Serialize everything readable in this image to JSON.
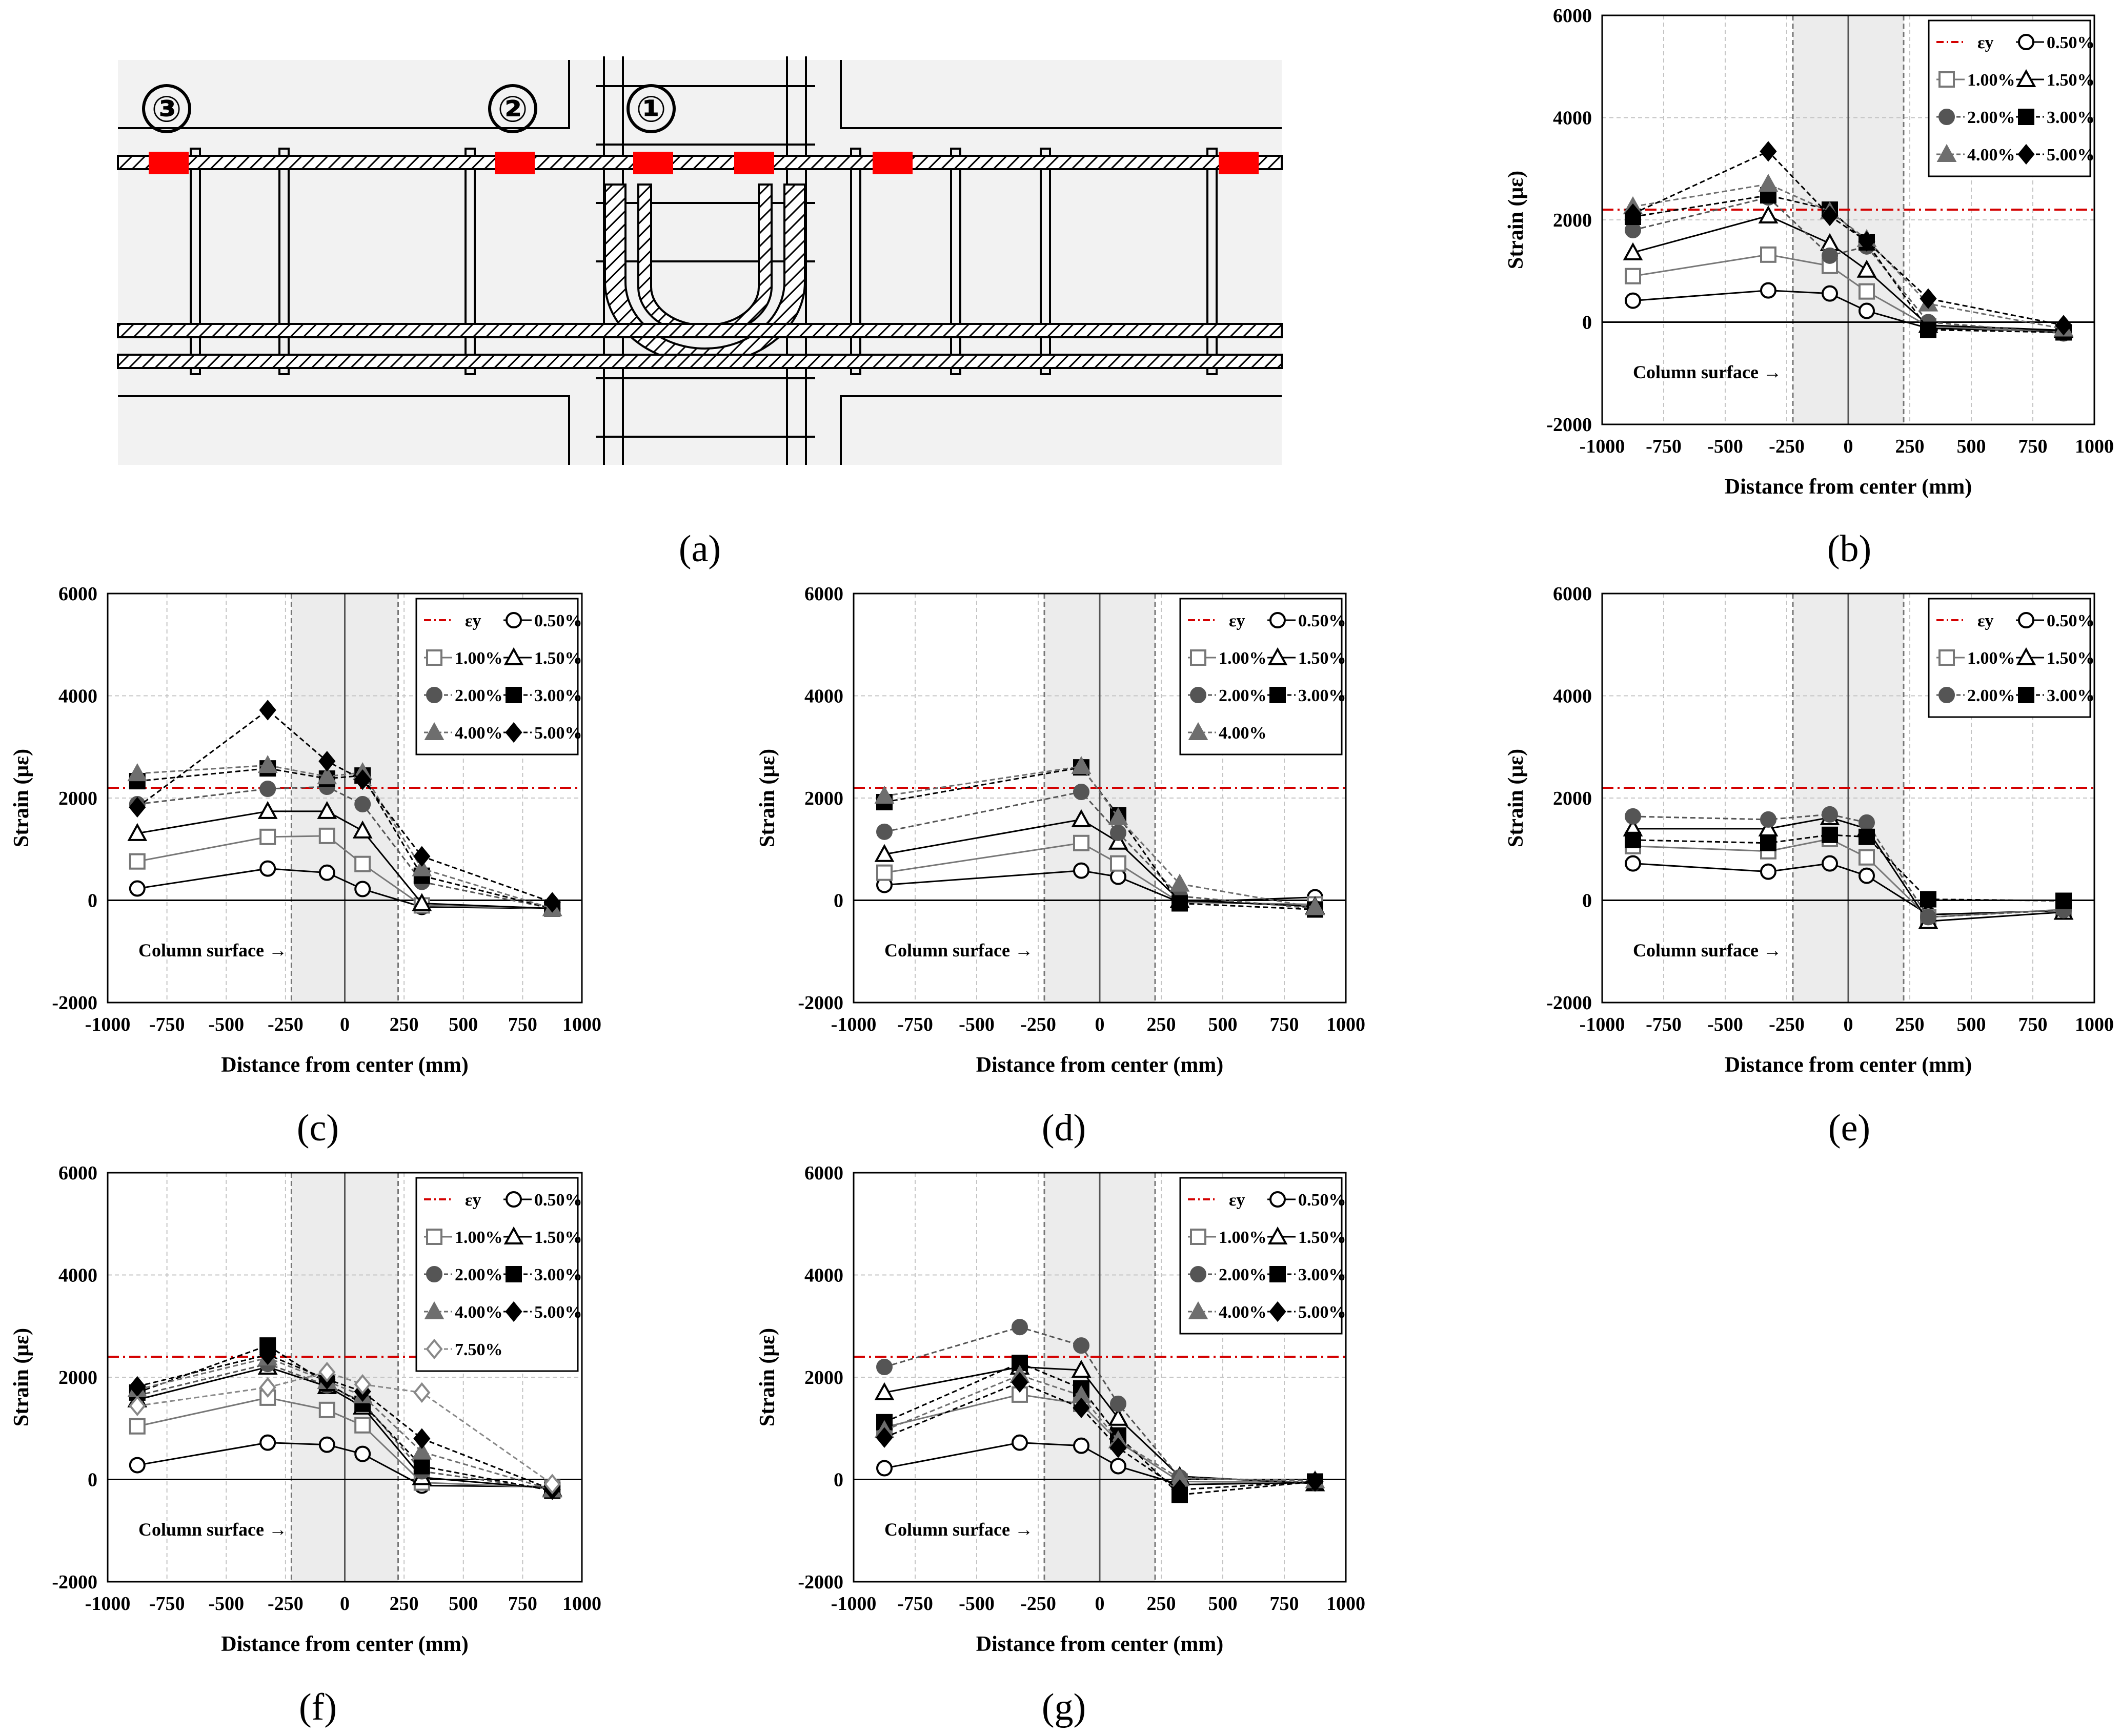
{
  "panel_letters": [
    "(a)",
    "(b)",
    "(c)",
    "(d)",
    "(e)",
    "(f)",
    "(g)"
  ],
  "schematic": {
    "markers": [
      "③",
      "②",
      "①"
    ],
    "colors": {
      "gauge": "#ff0000",
      "background": "#f2f2f2",
      "line": "#000000"
    }
  },
  "colors": {
    "ey_line": "#d40000",
    "band": "#ececec",
    "grid": "#c4c4c4",
    "s050": "#000000",
    "s100": "#777777",
    "s150": "#000000",
    "s200": "#555555",
    "s300": "#000000",
    "s400": "#6e6e6e",
    "s500": "#000000",
    "s750": "#888888"
  },
  "chart_data": [
    {
      "id": "b",
      "type": "line",
      "panel": "(b)",
      "xlabel": "Distance from center (mm)",
      "ylabel": "Strain (με)",
      "xlim": [
        -1000,
        1000
      ],
      "ylim": [
        -2000,
        6000
      ],
      "xticks": [
        -1000,
        -750,
        -500,
        -250,
        0,
        250,
        500,
        750,
        1000
      ],
      "yticks": [
        -2000,
        0,
        2000,
        4000,
        6000
      ],
      "column_band": [
        -225,
        225
      ],
      "annotation": "Column surface",
      "ey": 2200,
      "ey_label": "εy",
      "x": [
        -875,
        -325,
        -75,
        75,
        325,
        875
      ],
      "series": [
        {
          "name": "0.50%",
          "values": [
            420,
            620,
            560,
            220,
            -120,
            -180
          ]
        },
        {
          "name": "1.00%",
          "values": [
            900,
            1320,
            1100,
            600,
            -80,
            -200
          ]
        },
        {
          "name": "1.50%",
          "values": [
            1360,
            2080,
            1540,
            1020,
            -60,
            -160
          ]
        },
        {
          "name": "2.00%",
          "values": [
            1800,
            2440,
            1300,
            1480,
            0,
            -220
          ]
        },
        {
          "name": "3.00%",
          "values": [
            2060,
            2480,
            2200,
            1560,
            -150,
            -200
          ]
        },
        {
          "name": "4.00%",
          "values": [
            2260,
            2700,
            2160,
            1620,
            360,
            -130
          ]
        },
        {
          "name": "5.00%",
          "values": [
            2120,
            3340,
            2080,
            1580,
            460,
            -60
          ]
        }
      ]
    },
    {
      "id": "c",
      "type": "line",
      "panel": "(c)",
      "xlabel": "Distance from center (mm)",
      "ylabel": "Strain (με)",
      "xlim": [
        -1000,
        1000
      ],
      "ylim": [
        -2000,
        6000
      ],
      "xticks": [
        -1000,
        -750,
        -500,
        -250,
        0,
        250,
        500,
        750,
        1000
      ],
      "yticks": [
        -2000,
        0,
        2000,
        4000,
        6000
      ],
      "column_band": [
        -225,
        225
      ],
      "annotation": "Column surface",
      "ey": 2200,
      "ey_label": "εy",
      "x": [
        -875,
        -325,
        -75,
        75,
        325,
        875
      ],
      "series": [
        {
          "name": "0.50%",
          "values": [
            230,
            620,
            540,
            220,
            -130,
            -160
          ]
        },
        {
          "name": "1.00%",
          "values": [
            760,
            1240,
            1260,
            710,
            -100,
            -160
          ]
        },
        {
          "name": "1.50%",
          "values": [
            1310,
            1740,
            1740,
            1360,
            -60,
            -160
          ]
        },
        {
          "name": "2.00%",
          "values": [
            1880,
            2180,
            2220,
            1880,
            360,
            -160
          ]
        },
        {
          "name": "3.00%",
          "values": [
            2330,
            2580,
            2380,
            2440,
            480,
            -160
          ]
        },
        {
          "name": "4.00%",
          "values": [
            2480,
            2640,
            2420,
            2500,
            620,
            -160
          ]
        },
        {
          "name": "5.00%",
          "values": [
            1820,
            3720,
            2720,
            2360,
            860,
            -40
          ]
        }
      ]
    },
    {
      "id": "d",
      "type": "line",
      "panel": "(d)",
      "xlabel": "Distance from center (mm)",
      "ylabel": "Strain (με)",
      "xlim": [
        -1000,
        1000
      ],
      "ylim": [
        -2000,
        6000
      ],
      "xticks": [
        -1000,
        -750,
        -500,
        -250,
        0,
        250,
        500,
        750,
        1000
      ],
      "yticks": [
        -2000,
        0,
        2000,
        4000,
        6000
      ],
      "column_band": [
        -225,
        225
      ],
      "annotation": "Column surface",
      "ey": 2200,
      "ey_label": "εy",
      "x": [
        -875,
        -75,
        75,
        325,
        875
      ],
      "series": [
        {
          "name": "0.50%",
          "values": [
            300,
            580,
            460,
            -40,
            60
          ]
        },
        {
          "name": "1.00%",
          "values": [
            540,
            1120,
            720,
            -40,
            -80
          ]
        },
        {
          "name": "1.50%",
          "values": [
            900,
            1580,
            1140,
            0,
            -120
          ]
        },
        {
          "name": "2.00%",
          "values": [
            1340,
            2120,
            1320,
            80,
            -160
          ]
        },
        {
          "name": "3.00%",
          "values": [
            1920,
            2600,
            1660,
            -60,
            -180
          ]
        },
        {
          "name": "4.00%",
          "values": [
            2040,
            2620,
            1620,
            320,
            -140
          ]
        }
      ]
    },
    {
      "id": "e",
      "type": "line",
      "panel": "(e)",
      "xlabel": "Distance from center (mm)",
      "ylabel": "Strain (με)",
      "xlim": [
        -1000,
        1000
      ],
      "ylim": [
        -2000,
        6000
      ],
      "xticks": [
        -1000,
        -750,
        -500,
        -250,
        0,
        250,
        500,
        750,
        1000
      ],
      "yticks": [
        -2000,
        0,
        2000,
        4000,
        6000
      ],
      "column_band": [
        -225,
        225
      ],
      "annotation": "Column surface",
      "ey": 2200,
      "ey_label": "εy",
      "x": [
        -875,
        -325,
        -75,
        75,
        325,
        875
      ],
      "series": [
        {
          "name": "0.50%",
          "values": [
            720,
            560,
            720,
            480,
            -280,
            -200
          ]
        },
        {
          "name": "1.00%",
          "values": [
            1060,
            960,
            1200,
            840,
            -330,
            -180
          ]
        },
        {
          "name": "1.50%",
          "values": [
            1400,
            1400,
            1620,
            1400,
            -410,
            -230
          ]
        },
        {
          "name": "2.00%",
          "values": [
            1640,
            1580,
            1680,
            1520,
            -330,
            -190
          ]
        },
        {
          "name": "3.00%",
          "values": [
            1180,
            1120,
            1280,
            1240,
            20,
            -10
          ]
        }
      ]
    },
    {
      "id": "f",
      "type": "line",
      "panel": "(f)",
      "xlabel": "Distance from center (mm)",
      "ylabel": "Strain (με)",
      "xlim": [
        -1000,
        1000
      ],
      "ylim": [
        -2000,
        6000
      ],
      "xticks": [
        -1000,
        -750,
        -500,
        -250,
        0,
        250,
        500,
        750,
        1000
      ],
      "yticks": [
        -2000,
        0,
        2000,
        4000,
        6000
      ],
      "column_band": [
        -225,
        225
      ],
      "annotation": "Column surface",
      "ey": 2400,
      "ey_label": "εy",
      "x": [
        -875,
        -325,
        -75,
        75,
        325,
        875
      ],
      "series": [
        {
          "name": "0.50%",
          "values": [
            280,
            720,
            680,
            500,
            -120,
            -140
          ]
        },
        {
          "name": "1.00%",
          "values": [
            1040,
            1600,
            1360,
            1060,
            -60,
            -160
          ]
        },
        {
          "name": "1.50%",
          "values": [
            1560,
            2200,
            1820,
            1420,
            40,
            -180
          ]
        },
        {
          "name": "2.00%",
          "values": [
            1640,
            2260,
            1840,
            1520,
            160,
            -200
          ]
        },
        {
          "name": "3.00%",
          "values": [
            1700,
            2620,
            1880,
            1480,
            260,
            -220
          ]
        },
        {
          "name": "4.00%",
          "values": [
            1760,
            2380,
            1920,
            1640,
            540,
            -200
          ]
        },
        {
          "name": "5.00%",
          "values": [
            1820,
            2440,
            1960,
            1720,
            800,
            -200
          ]
        },
        {
          "name": "7.50%",
          "values": [
            1440,
            1800,
            2100,
            1860,
            1700,
            -90
          ]
        }
      ]
    },
    {
      "id": "g",
      "type": "line",
      "panel": "(g)",
      "xlabel": "Distance from center (mm)",
      "ylabel": "Strain (με)",
      "xlim": [
        -1000,
        1000
      ],
      "ylim": [
        -2000,
        6000
      ],
      "xticks": [
        -1000,
        -750,
        -500,
        -250,
        0,
        250,
        500,
        750,
        1000
      ],
      "yticks": [
        -2000,
        0,
        2000,
        4000,
        6000
      ],
      "column_band": [
        -225,
        225
      ],
      "annotation": "Column surface",
      "ey": 2400,
      "ey_label": "εy",
      "x": [
        -875,
        -325,
        -75,
        75,
        325,
        875
      ],
      "series": [
        {
          "name": "0.50%",
          "values": [
            220,
            720,
            660,
            260,
            -100,
            -60
          ]
        },
        {
          "name": "1.00%",
          "values": [
            1020,
            1660,
            1480,
            740,
            -40,
            -60
          ]
        },
        {
          "name": "1.50%",
          "values": [
            1700,
            2200,
            2140,
            1200,
            60,
            -80
          ]
        },
        {
          "name": "2.00%",
          "values": [
            2200,
            2980,
            2620,
            1480,
            40,
            -60
          ]
        },
        {
          "name": "3.00%",
          "values": [
            1120,
            2280,
            1780,
            860,
            -300,
            -40
          ]
        },
        {
          "name": "4.00%",
          "values": [
            960,
            2040,
            1640,
            760,
            20,
            -20
          ]
        },
        {
          "name": "5.00%",
          "values": [
            820,
            1900,
            1400,
            620,
            -200,
            -40
          ]
        }
      ]
    }
  ]
}
